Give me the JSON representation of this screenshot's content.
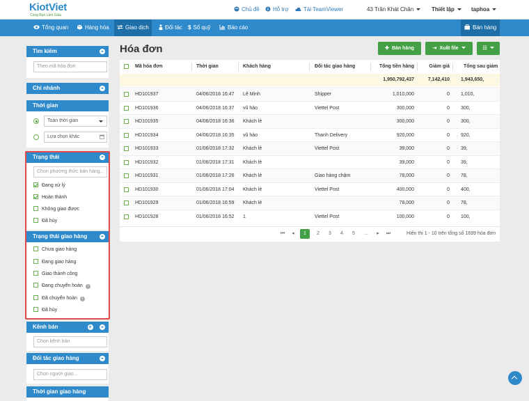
{
  "topbar": {
    "brand": "KiotViet",
    "tagline": "Cùng Bạn Làm Giàu",
    "links": {
      "theme": "Chủ đề",
      "help": "Hỗ trợ",
      "teamviewer": "Tải TeamViewer"
    },
    "address": "43 Trần Khát Chân",
    "settings": "Thiết lập",
    "user": "taphoa"
  },
  "nav": {
    "overview": "Tổng quan",
    "products": "Hàng hóa",
    "transactions": "Giao dịch",
    "partners": "Đối tác",
    "cashbook": "Sổ quỹ",
    "reports": "Báo cáo",
    "sell": "Bán hàng"
  },
  "sidebar": {
    "search": {
      "title": "Tìm kiếm",
      "placeholder": "Theo mã hóa đơn"
    },
    "branch": {
      "title": "Chi nhánh"
    },
    "time": {
      "title": "Thời gian",
      "option1": "Toàn thời gian",
      "option2": "Lựa chọn khác"
    },
    "status": {
      "title": "Trạng thái",
      "placeholder": "Chọn phương thức bán hàng...",
      "items": [
        {
          "label": "Đang xử lý",
          "checked": true
        },
        {
          "label": "Hoàn thành",
          "checked": true
        },
        {
          "label": "Không giao được",
          "checked": false
        },
        {
          "label": "Đã hủy",
          "checked": false
        }
      ]
    },
    "delivery_status": {
      "title": "Trạng thái giao hàng",
      "items": [
        {
          "label": "Chưa giao hàng",
          "info": false
        },
        {
          "label": "Đang giao hàng",
          "info": false
        },
        {
          "label": "Giao thành công",
          "info": false
        },
        {
          "label": "Đang chuyển hoàn",
          "info": true
        },
        {
          "label": "Đã chuyển hoàn",
          "info": true
        },
        {
          "label": "Đã hủy",
          "info": false
        }
      ]
    },
    "channel": {
      "title": "Kênh bán",
      "placeholder": "Chọn kênh bán"
    },
    "delivery_partner": {
      "title": "Đối tác giao hàng",
      "placeholder": "Chọn người giao..."
    },
    "delivery_time": {
      "title": "Thời gian giao hàng"
    }
  },
  "main": {
    "title": "Hóa đơn",
    "buttons": {
      "sell": "Bán hàng",
      "export": "Xuất file"
    },
    "columns": [
      "Mã hóa đơn",
      "Thời gian",
      "Khách hàng",
      "Đối tác giao hàng",
      "Tổng tiền hàng",
      "Giảm giá",
      "Tổng sau giảm"
    ],
    "summary": {
      "total": "1,950,792,437",
      "discount": "7,142,410",
      "after": "1,943,650,"
    },
    "rows": [
      {
        "code": "HD101937",
        "time": "04/06/2018 16:47",
        "customer": "Lê Minh",
        "partner": "Shipper",
        "total": "1,010,000",
        "discount": "0",
        "after": "1,010,"
      },
      {
        "code": "HD101936",
        "time": "04/06/2018 16:37",
        "customer": "vũ hảo",
        "partner": "Viettel Post",
        "total": "300,000",
        "discount": "0",
        "after": "300,"
      },
      {
        "code": "HD101935",
        "time": "04/06/2018 16:36",
        "customer": "Khách lẻ",
        "partner": "",
        "total": "300,000",
        "discount": "0",
        "after": "300,"
      },
      {
        "code": "HD101934",
        "time": "04/06/2018 16:35",
        "customer": "vũ hảo",
        "partner": "Thanh Delivery",
        "total": "920,000",
        "discount": "0",
        "after": "920,"
      },
      {
        "code": "HD101933",
        "time": "01/06/2018 17:32",
        "customer": "Khách lẻ",
        "partner": "Viettel Post",
        "total": "39,000",
        "discount": "0",
        "after": "39,"
      },
      {
        "code": "HD101932",
        "time": "01/06/2018 17:31",
        "customer": "Khách lẻ",
        "partner": "",
        "total": "39,000",
        "discount": "0",
        "after": "39,"
      },
      {
        "code": "HD101931",
        "time": "01/06/2018 17:26",
        "customer": "Khách lẻ",
        "partner": "Giao hàng chậm",
        "total": "78,000",
        "discount": "0",
        "after": "78,"
      },
      {
        "code": "HD101930",
        "time": "01/06/2018 17:04",
        "customer": "Khách lẻ",
        "partner": "Viettel Post",
        "total": "400,000",
        "discount": "0",
        "after": "400,"
      },
      {
        "code": "HD101929",
        "time": "01/06/2018 16:59",
        "customer": "Khách lẻ",
        "partner": "",
        "total": "78,000",
        "discount": "0",
        "after": "78,"
      },
      {
        "code": "HD101928",
        "time": "01/06/2018 16:52",
        "customer": "1",
        "partner": "Viettel Post",
        "total": "100,000",
        "discount": "0",
        "after": "100,"
      }
    ],
    "pager": {
      "pages": [
        "1",
        "2",
        "3",
        "4",
        "5",
        "..."
      ],
      "current": "1",
      "info": "Hiển thị 1 - 10 trên tổng số 1699 hóa đơn"
    }
  },
  "colors": {
    "primary": "#2f8acb",
    "nav_active": "#1e6fa8",
    "green": "#43a047",
    "highlight": "#e04a4a",
    "summary_bg": "#fdf8e1"
  }
}
